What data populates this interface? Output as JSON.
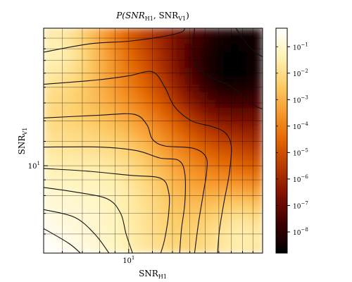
{
  "chart_data": {
    "type": "heatmap",
    "title": "P(SNRH1, SNRV1)",
    "title_parts": {
      "prefix": "P(SNR",
      "sub1": "H1",
      "mid": ", SNR",
      "sub2": "V1",
      "suffix": ")"
    },
    "xlabel": {
      "main": "SNR",
      "sub": "H1"
    },
    "ylabel": {
      "main": "SNR",
      "sub": "V1"
    },
    "x_scale": "log",
    "y_scale": "log",
    "xlim": [
      5.2,
      28
    ],
    "ylim": [
      5.2,
      28
    ],
    "x_ticks": [
      {
        "value": 10,
        "base": "10",
        "exp": "1"
      }
    ],
    "y_ticks": [
      {
        "value": 10,
        "base": "10",
        "exp": "1"
      }
    ],
    "grid": true,
    "colormap": "afmhot",
    "colorbar": {
      "scale": "log",
      "range_exp": [
        -8.8,
        -0.3
      ],
      "ticks": [
        {
          "exp": -8,
          "base": "10",
          "label": "−8"
        },
        {
          "exp": -7,
          "base": "10",
          "label": "−7"
        },
        {
          "exp": -6,
          "base": "10",
          "label": "−6"
        },
        {
          "exp": -5,
          "base": "10",
          "label": "−5"
        },
        {
          "exp": -4,
          "base": "10",
          "label": "−4"
        },
        {
          "exp": -3,
          "base": "10",
          "label": "−3"
        },
        {
          "exp": -2,
          "base": "10",
          "label": "−2"
        },
        {
          "exp": -1,
          "base": "10",
          "label": "−1"
        }
      ]
    },
    "contours": [
      {
        "points": [
          [
            5.2,
            6.25
          ],
          [
            6.3,
            5.6
          ],
          [
            6.9,
            5.2
          ]
        ]
      },
      {
        "points": [
          [
            5.2,
            7.2
          ],
          [
            6.6,
            6.8
          ],
          [
            7.7,
            6.0
          ],
          [
            8.6,
            5.2
          ]
        ]
      },
      {
        "points": [
          [
            5.2,
            8.5
          ],
          [
            6.7,
            8.2
          ],
          [
            8.5,
            7.8
          ],
          [
            9.4,
            7.0
          ],
          [
            9.8,
            6.0
          ],
          [
            10.3,
            5.2
          ]
        ]
      },
      {
        "points": [
          [
            5.2,
            9.8
          ],
          [
            7.3,
            9.6
          ],
          [
            10.2,
            9.3
          ],
          [
            12.8,
            9.1
          ],
          [
            13.6,
            8.2
          ],
          [
            13.6,
            7.0
          ],
          [
            13.2,
            5.8
          ],
          [
            12.8,
            5.2
          ]
        ]
      },
      {
        "points": [
          [
            5.2,
            11.5
          ],
          [
            8.0,
            11.5
          ],
          [
            10.6,
            11.2
          ],
          [
            12.7,
            10.6
          ],
          [
            14.7,
            10.4
          ],
          [
            15.4,
            9.4
          ],
          [
            15.4,
            7.6
          ],
          [
            15.0,
            6.2
          ],
          [
            14.8,
            5.2
          ]
        ]
      },
      {
        "points": [
          [
            5.2,
            14.3
          ],
          [
            8.0,
            14.6
          ],
          [
            10.4,
            14.7
          ],
          [
            11.5,
            13.6
          ],
          [
            12.0,
            12.2
          ],
          [
            13.2,
            11.6
          ],
          [
            16.4,
            11.4
          ],
          [
            18.1,
            10.7
          ],
          [
            18.2,
            9.5
          ],
          [
            17.7,
            8.0
          ],
          [
            17.1,
            6.5
          ],
          [
            16.6,
            5.2
          ]
        ]
      },
      {
        "points": [
          [
            5.2,
            18.4
          ],
          [
            7.8,
            19.0
          ],
          [
            10.0,
            19.6
          ],
          [
            12.0,
            20.2
          ],
          [
            13.2,
            18.0
          ],
          [
            14.2,
            15.6
          ],
          [
            16.2,
            14.0
          ],
          [
            19.0,
            13.4
          ],
          [
            21.0,
            12.8
          ],
          [
            22.0,
            11.6
          ],
          [
            21.7,
            9.5
          ],
          [
            20.8,
            7.6
          ],
          [
            20.1,
            6.2
          ],
          [
            19.8,
            5.2
          ]
        ]
      },
      {
        "points": [
          [
            5.2,
            23.4
          ],
          [
            7.4,
            24.9
          ],
          [
            10.0,
            25.4
          ],
          [
            13.0,
            26.3
          ],
          [
            15.0,
            27.2
          ],
          [
            15.4,
            28.0
          ]
        ]
      },
      {
        "points": [
          [
            16.6,
            28.0
          ],
          [
            16.5,
            24.2
          ],
          [
            16.8,
            21.2
          ],
          [
            18.6,
            19.5
          ],
          [
            21.5,
            18.3
          ],
          [
            24.0,
            17.0
          ],
          [
            26.3,
            15.7
          ],
          [
            28.0,
            15.3
          ]
        ]
      },
      {
        "points": [
          [
            22.8,
            28.0
          ],
          [
            24.5,
            25.3
          ],
          [
            26.5,
            23.4
          ],
          [
            28.0,
            22.6
          ]
        ]
      }
    ]
  },
  "palette": {
    "afmhot": [
      "#000000",
      "#3a0000",
      "#7a0e00",
      "#b43600",
      "#e26500",
      "#f79a2e",
      "#fdce6a",
      "#fff3b8",
      "#ffffff"
    ]
  }
}
